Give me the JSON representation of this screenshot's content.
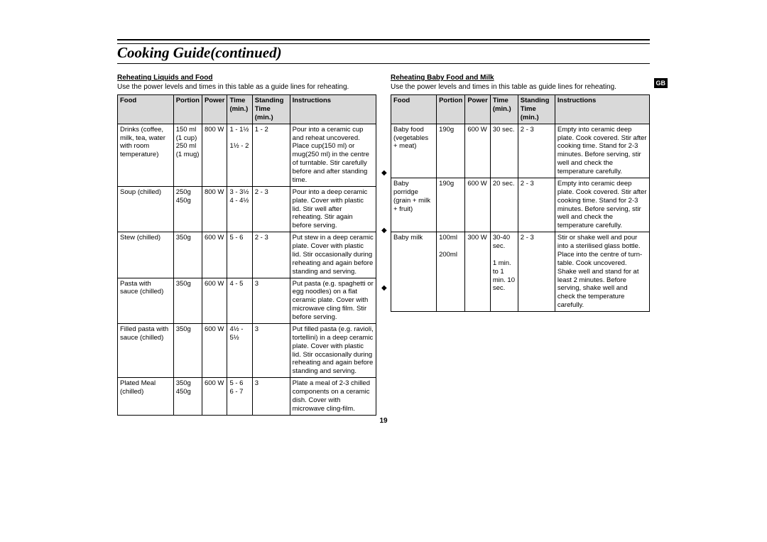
{
  "title": "Cooking Guide(continued)",
  "gbLabel": "GB",
  "pageNum": "19",
  "left": {
    "heading": "Reheating Liquids and Food",
    "intro": "Use the power levels and times in this table as a guide lines for reheating.",
    "headers": [
      "Food",
      "Portion",
      "Power",
      "Time (min.)",
      "Standing Time (min.)",
      "Instructions"
    ],
    "rows": [
      {
        "food": "Drinks (coffee, milk, tea, water with room temperature)",
        "portion": "150 ml\n(1 cup)\n250 ml\n(1 mug)",
        "power": "800 W",
        "time": "1 - 1½\n\n1½ - 2",
        "stand": "1 - 2",
        "instr": "Pour into a ceramic cup and  reheat uncovered. Place cup(150 ml) or mug(250 ml) in the centre of turntable. Stir carefully before and after standing time."
      },
      {
        "food": "Soup (chilled)",
        "portion": "250g\n450g",
        "power": "800 W",
        "time": "3 - 3½\n4 - 4½",
        "stand": "2 - 3",
        "instr": "Pour into a deep ceramic plate. Cover with plastic lid. Stir well after reheating. Stir again before serving."
      },
      {
        "food": "Stew (chilled)",
        "portion": "350g",
        "power": "600 W",
        "time": "5 - 6",
        "stand": "2 - 3",
        "instr": "Put stew in a deep ceramic plate. Cover with plastic lid. Stir occasionally during reheating and again before standing and serving."
      },
      {
        "food": "Pasta with sauce (chilled)",
        "portion": "350g",
        "power": "600 W",
        "time": "4 - 5",
        "stand": "3",
        "instr": "Put pasta (e.g. spaghetti or egg noodles)  on a flat ceramic plate. Cover with microwave cling film. Stir before serving."
      },
      {
        "food": "Filled pasta with sauce (chilled)",
        "portion": "350g",
        "power": "600 W",
        "time": "4½ - 5½",
        "stand": "3",
        "instr": "Put filled pasta (e.g. ravioli, tortellini) in a deep ceramic plate. Cover with plastic lid. Stir occasionally during reheating and again before standing and serving."
      },
      {
        "food": "Plated Meal (chilled)",
        "portion": "350g\n450g",
        "power": "600 W",
        "time": "5 - 6\n6 - 7",
        "stand": "3",
        "instr": "Plate a meal of  2-3 chilled components on a ceramic dish. Cover with microwave cling-film."
      }
    ]
  },
  "right": {
    "heading": "Reheating Baby Food and Milk",
    "intro": "Use the power levels and times in this table as guide lines for reheating.",
    "headers": [
      "Food",
      "Portion",
      "Power",
      "Time (min.)",
      "Standing Time (min.)",
      "Instructions"
    ],
    "rows": [
      {
        "food": "Baby food (vegetables + meat)",
        "portion": "190g",
        "power": "600 W",
        "time": "30 sec.",
        "stand": "2 - 3",
        "instr": "Empty into ceramic deep plate. Cook covered. Stir after cooking time. Stand for 2-3 minutes. Before serving, stir well and check the temperature carefully."
      },
      {
        "food": "Baby porridge (grain + milk + fruit)",
        "portion": "190g",
        "power": "600 W",
        "time": "20 sec.",
        "stand": "2 - 3",
        "instr": "Empty into ceramic deep plate. Cook covered. Stir after cooking time. Stand for 2-3 minutes. Before serving, stir well and check the temperature carefully."
      },
      {
        "food": "Baby milk",
        "portion": "100ml\n\n200ml",
        "power": "300 W",
        "time": "30-40 sec.\n\n1 min. to 1 min. 10 sec.",
        "stand": "2 - 3",
        "instr": "Stir or shake well and pour into a sterilised  glass bottle. Place into the centre of turn-table. Cook uncovered. Shake well and stand for at least 2 minutes. Before serving, shake well and check the temperature carefully."
      }
    ]
  }
}
